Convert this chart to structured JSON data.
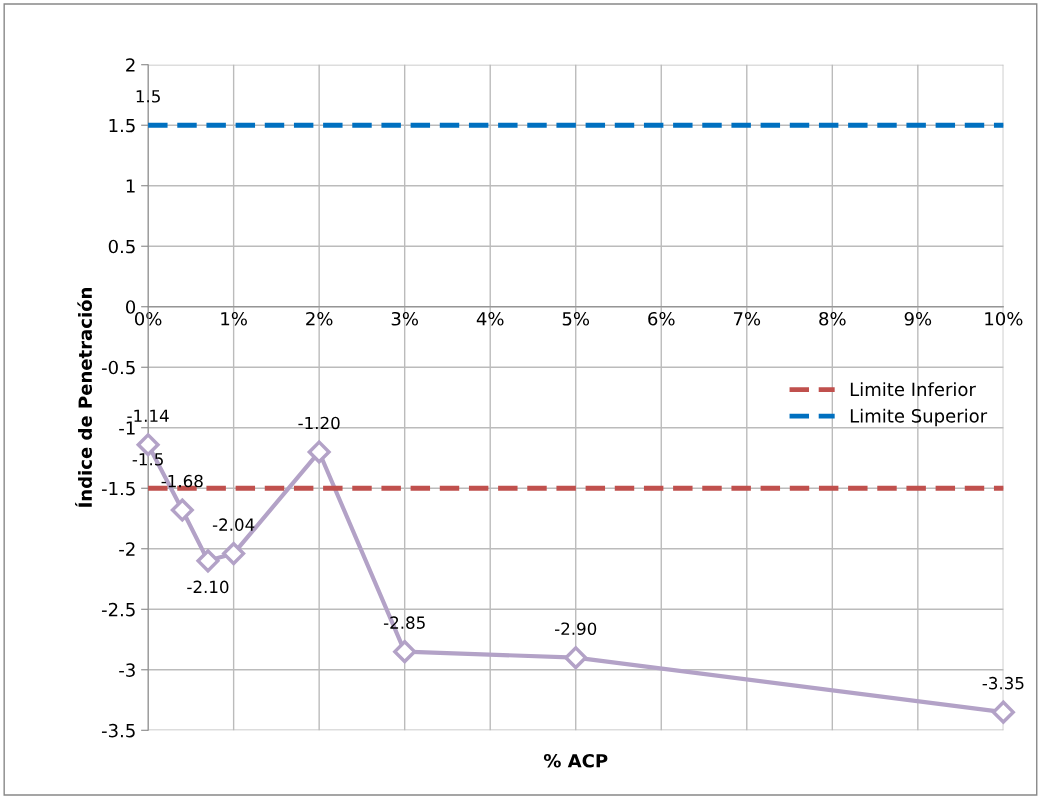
{
  "chart_data": {
    "type": "line",
    "xlabel": "% ACP",
    "ylabel": "Índice de Penetración",
    "x": [
      0,
      0.4,
      0.7,
      1,
      2,
      3,
      5,
      10
    ],
    "xlim": [
      0,
      10
    ],
    "xticks": [
      {
        "value": 0,
        "label": "0%"
      },
      {
        "value": 1,
        "label": "1%"
      },
      {
        "value": 2,
        "label": "2%"
      },
      {
        "value": 3,
        "label": "3%"
      },
      {
        "value": 4,
        "label": "4%"
      },
      {
        "value": 5,
        "label": "5%"
      },
      {
        "value": 6,
        "label": "6%"
      },
      {
        "value": 7,
        "label": "7%"
      },
      {
        "value": 8,
        "label": "8%"
      },
      {
        "value": 9,
        "label": "9%"
      },
      {
        "value": 10,
        "label": "10%"
      }
    ],
    "ylim": [
      -3.5,
      2
    ],
    "yticks": [
      -3.5,
      -3,
      -2.5,
      -2,
      -1.5,
      -1,
      -0.5,
      0,
      0.5,
      1,
      1.5,
      2
    ],
    "grid": true,
    "legend": "right",
    "series": [
      {
        "color": "#b3a2c7",
        "marker": "diamond",
        "line_style": "solid",
        "values": [
          -1.14,
          -1.68,
          -2.1,
          -2.04,
          -1.2,
          -2.85,
          -2.9,
          -3.35
        ],
        "value_labels": [
          "-1.14",
          "-1.68",
          "-2.10",
          "-2.04",
          "-1.20",
          "-2.85",
          "-2.90",
          "-3.35"
        ]
      },
      {
        "name": "Limite Inferior",
        "color": "#c0504d",
        "marker": "none",
        "line_style": "dashed",
        "values": [
          -1.5,
          -1.5,
          -1.5,
          -1.5,
          -1.5,
          -1.5,
          -1.5,
          -1.5
        ],
        "value_labels": [
          "-1.5",
          null,
          null,
          null,
          null,
          null,
          null,
          null
        ]
      },
      {
        "name": "Limite Superior",
        "color": "#0070c0",
        "marker": "none",
        "line_style": "dashed",
        "values": [
          1.5,
          1.5,
          1.5,
          1.5,
          1.5,
          1.5,
          1.5,
          1.5
        ],
        "value_labels": [
          "1.5",
          null,
          null,
          null,
          null,
          null,
          null,
          null
        ]
      }
    ]
  }
}
